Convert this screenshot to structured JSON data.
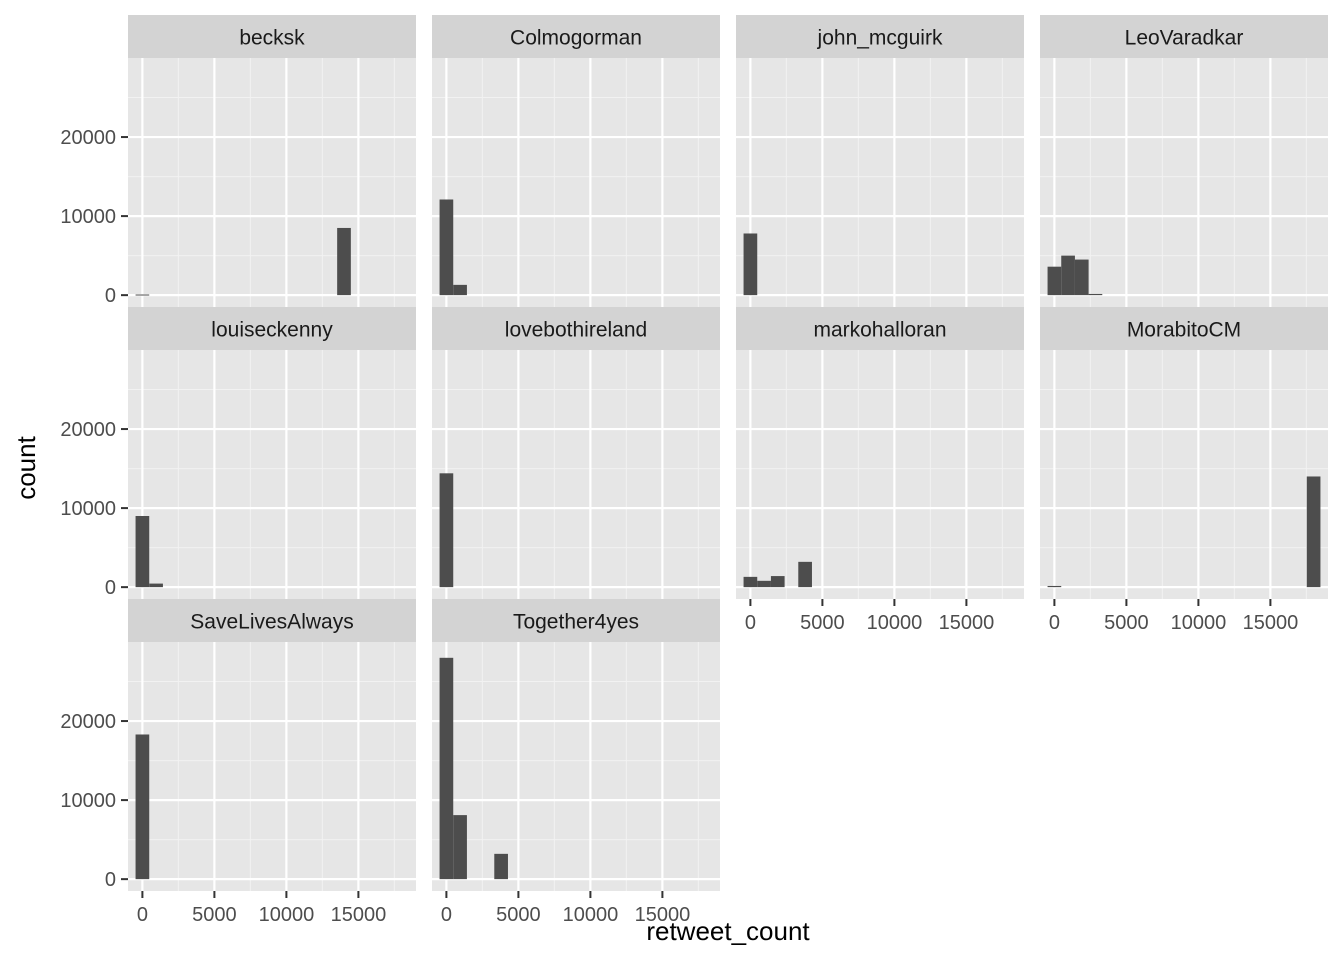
{
  "chart_data": {
    "type": "bar",
    "subtype": "faceted-histogram",
    "xlabel": "retweet_count",
    "ylabel": "count",
    "xlim": [
      -1000,
      19000
    ],
    "ylim": [
      -1500,
      30000
    ],
    "x_major_ticks": [
      0,
      5000,
      10000,
      15000
    ],
    "x_tick_labels": [
      "0",
      "5000",
      "10000",
      "15000"
    ],
    "y_major_ticks": [
      0,
      10000,
      20000
    ],
    "y_tick_labels": [
      "0",
      "10000",
      "20000"
    ],
    "bin_width": 950,
    "bar_color": "#4d4d4d",
    "panel_background": "#e6e6e6",
    "strip_background": "#d3d3d3",
    "grid": true,
    "layout": {
      "rows": 3,
      "cols": 4
    },
    "facets": [
      {
        "name": "becksk",
        "bins": [
          [
            0,
            80
          ],
          [
            14000,
            8500
          ]
        ]
      },
      {
        "name": "Colmogorman",
        "bins": [
          [
            0,
            12100
          ],
          [
            950,
            1300
          ]
        ]
      },
      {
        "name": "john_mcguirk",
        "bins": [
          [
            0,
            7800
          ]
        ]
      },
      {
        "name": "LeoVaradkar",
        "bins": [
          [
            0,
            3600
          ],
          [
            950,
            5000
          ],
          [
            1900,
            4500
          ],
          [
            2850,
            150
          ]
        ]
      },
      {
        "name": "louiseckenny",
        "bins": [
          [
            0,
            9000
          ],
          [
            950,
            450
          ]
        ]
      },
      {
        "name": "lovebothireland",
        "bins": [
          [
            0,
            14400
          ]
        ]
      },
      {
        "name": "markohalloran",
        "bins": [
          [
            0,
            1300
          ],
          [
            950,
            800
          ],
          [
            1900,
            1400
          ],
          [
            3800,
            3200
          ]
        ]
      },
      {
        "name": "MorabitoCM",
        "bins": [
          [
            0,
            150
          ],
          [
            18000,
            14000
          ]
        ]
      },
      {
        "name": "SaveLivesAlways",
        "bins": [
          [
            0,
            18300
          ]
        ]
      },
      {
        "name": "Together4yes",
        "bins": [
          [
            0,
            28000
          ],
          [
            950,
            8100
          ],
          [
            3800,
            3200
          ]
        ]
      }
    ]
  }
}
